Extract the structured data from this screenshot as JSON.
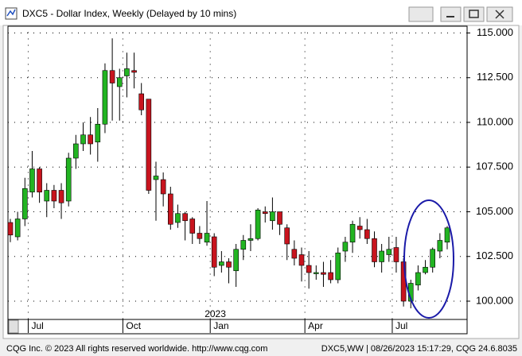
{
  "chart_data": {
    "type": "candlestick",
    "title": "DXC5 - Dollar Index, Weekly (Delayed by 10 mins)",
    "categories": [
      null,
      null,
      null,
      "Jul",
      null,
      null,
      null,
      null,
      null,
      null,
      null,
      null,
      null,
      null,
      null,
      null,
      "Oct",
      null,
      null,
      null,
      null,
      null,
      null,
      null,
      null,
      null,
      null,
      null,
      "Jan",
      null,
      null,
      null,
      null,
      null,
      null,
      null,
      null,
      null,
      null,
      null,
      null,
      "Apr",
      null,
      null,
      null,
      null,
      null,
      null,
      null,
      null,
      null,
      null,
      null,
      "Jul",
      null,
      null,
      null,
      null,
      null,
      null,
      null
    ],
    "open": [
      104.4,
      103.6,
      104.6,
      106.1,
      107.4,
      105.6,
      106.2,
      106.2,
      105.6,
      108.0,
      108.8,
      109.3,
      108.9,
      109.9,
      112.9,
      112.0,
      112.6,
      112.9,
      111.6,
      111.3,
      106.8,
      106.8,
      106.0,
      104.4,
      104.9,
      104.6,
      103.8,
      103.3,
      103.6,
      102.0,
      102.2,
      101.7,
      102.9,
      103.4,
      103.5,
      105.0,
      104.5,
      105.0,
      104.1,
      102.9,
      102.6,
      102.0,
      101.6,
      101.6,
      101.6,
      101.2,
      102.8,
      103.3,
      104.2,
      104.0,
      103.5,
      102.2,
      102.6,
      103.0,
      102.2,
      100.0,
      100.9,
      101.6,
      101.9,
      102.8,
      103.3
    ],
    "high": [
      104.6,
      105.0,
      106.9,
      108.4,
      107.5,
      106.6,
      106.5,
      106.6,
      108.3,
      109.3,
      110.0,
      110.3,
      110.8,
      113.3,
      114.7,
      113.0,
      113.9,
      113.9,
      112.2,
      111.3,
      107.8,
      107.2,
      106.4,
      105.4,
      105.0,
      104.7,
      104.2,
      105.6,
      103.8,
      102.8,
      102.4,
      103.2,
      103.7,
      104.3,
      105.2,
      105.3,
      105.8,
      105.0,
      104.3,
      103.4,
      103.0,
      102.8,
      102.0,
      102.2,
      102.3,
      103.0,
      103.6,
      104.5,
      104.7,
      104.6,
      103.9,
      103.2,
      103.6,
      103.6,
      102.4,
      101.2,
      102.0,
      102.3,
      103.0,
      103.8,
      104.2
    ],
    "low": [
      103.3,
      103.4,
      104.2,
      105.8,
      105.5,
      104.7,
      105.2,
      104.6,
      105.3,
      107.4,
      108.4,
      108.2,
      107.8,
      109.4,
      110.1,
      110.1,
      111.4,
      111.9,
      110.4,
      106.0,
      104.5,
      105.3,
      104.0,
      104.1,
      103.4,
      103.2,
      103.2,
      103.1,
      101.4,
      101.6,
      101.0,
      100.8,
      102.3,
      102.8,
      103.4,
      104.4,
      104.0,
      103.7,
      102.3,
      102.0,
      101.1,
      100.7,
      101.2,
      100.8,
      101.0,
      101.0,
      102.2,
      102.7,
      103.5,
      103.2,
      101.9,
      101.6,
      102.2,
      101.6,
      99.7,
      99.6,
      100.6,
      101.5,
      101.6,
      102.4,
      102.9
    ],
    "close": [
      103.7,
      104.6,
      106.3,
      107.4,
      106.1,
      106.2,
      105.6,
      105.5,
      108.0,
      108.8,
      109.3,
      108.8,
      109.9,
      112.9,
      112.2,
      112.5,
      113.0,
      112.8,
      110.7,
      106.2,
      107.0,
      106.0,
      104.3,
      104.9,
      104.5,
      103.8,
      103.5,
      103.8,
      101.9,
      102.2,
      101.9,
      102.9,
      103.4,
      103.5,
      105.1,
      104.9,
      105.0,
      104.3,
      103.2,
      102.4,
      102.0,
      101.6,
      101.6,
      101.5,
      101.2,
      102.7,
      103.3,
      104.3,
      104.0,
      103.5,
      102.2,
      102.8,
      102.9,
      102.2,
      100.0,
      101.0,
      101.6,
      101.9,
      102.9,
      103.4,
      104.1
    ],
    "up_color": "#22b422",
    "down_color": "#c8141e",
    "ylim": [
      99.0,
      115.4
    ],
    "yticks": [
      {
        "value": 100,
        "label": "100.000"
      },
      {
        "value": 102.5,
        "label": "102.500"
      },
      {
        "value": 105,
        "label": "105.000"
      },
      {
        "value": 107.5,
        "label": "107.500"
      },
      {
        "value": 110,
        "label": "110.000"
      },
      {
        "value": 112.5,
        "label": "112.500"
      },
      {
        "value": 115,
        "label": "115.000"
      }
    ],
    "grid": true,
    "year_label": "2023"
  },
  "footer": {
    "left": "CQG Inc. © 2023 All rights reserved worldwide. http://www.cqg.com",
    "right": "DXC5,WW | 08/26/2023 15:17:29, CQG 24.6.8035"
  }
}
